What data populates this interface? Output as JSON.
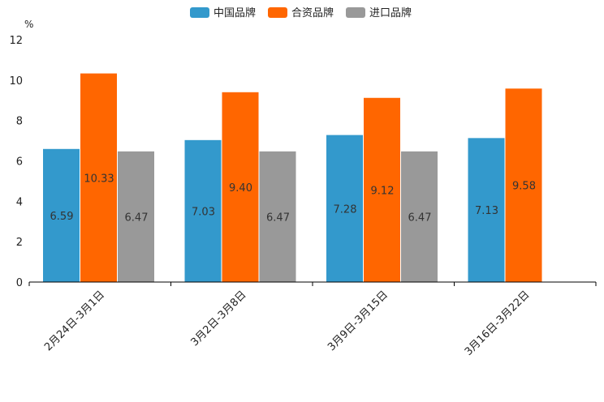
{
  "chart_data": {
    "type": "bar",
    "title": "",
    "ylabel": "%",
    "xlabel": "",
    "ylim": [
      0,
      12
    ],
    "yticks": [
      0,
      2,
      4,
      6,
      8,
      10,
      12
    ],
    "grid": false,
    "legend_position": "top-center",
    "categories": [
      "2月24日-3月1日",
      "3月2日-3月8日",
      "3月9日-3月15日",
      "3月16日-3月22日"
    ],
    "series": [
      {
        "name": "中国品牌",
        "color": "#3399cc",
        "values": [
          6.59,
          7.03,
          7.28,
          7.13
        ],
        "labels": [
          "6.59",
          "7.03",
          "7.28",
          "7.13"
        ]
      },
      {
        "name": "合资品牌",
        "color": "#ff6600",
        "values": [
          10.33,
          9.4,
          9.12,
          9.58
        ],
        "labels": [
          "10.33",
          "9.40",
          "9.12",
          "9.58"
        ]
      },
      {
        "name": "进口品牌",
        "color": "#999999",
        "values": [
          6.47,
          6.47,
          6.47,
          null
        ],
        "labels": [
          "6.47",
          "6.47",
          "6.47",
          null
        ]
      }
    ]
  }
}
